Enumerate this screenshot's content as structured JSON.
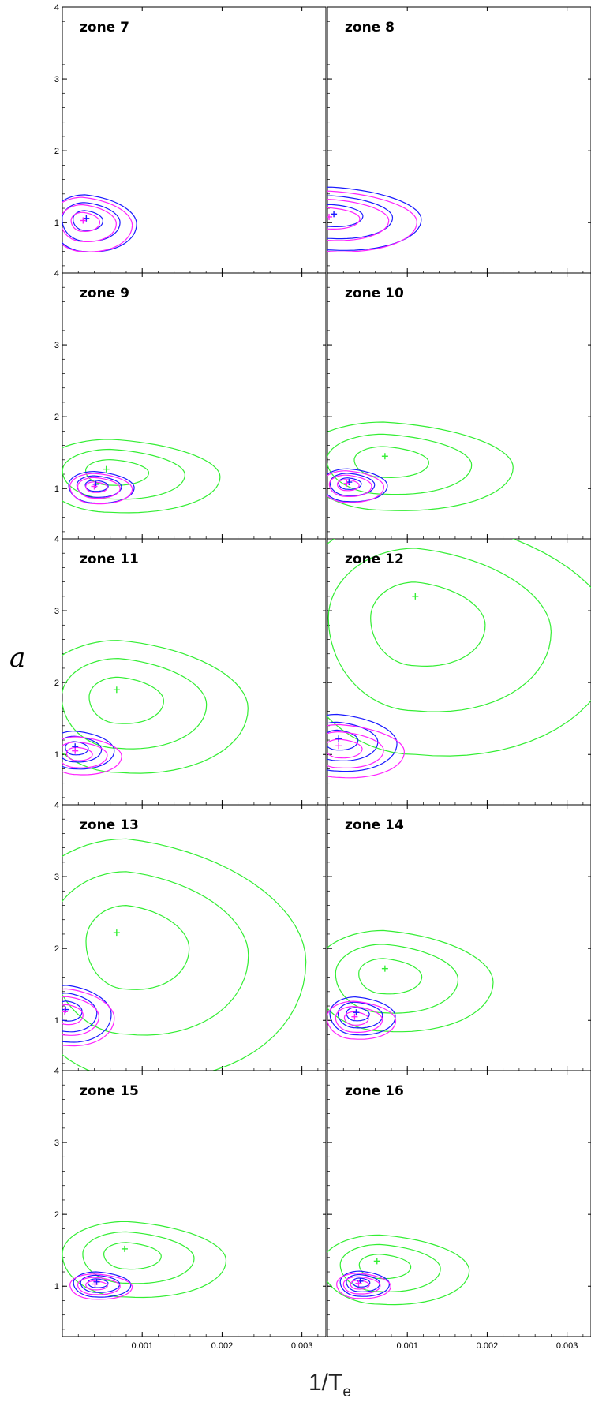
{
  "figure": {
    "ylabel": "a",
    "xlabel_main": "1/T",
    "xlabel_sub": "e"
  },
  "chart_data": {
    "type": "scatter",
    "description_kind": "contour panels, 2 columns x 5 rows",
    "xlim": [
      0.0,
      0.0033
    ],
    "ylim": [
      0.3,
      4
    ],
    "x_ticks": [
      0.001,
      0.002,
      0.003
    ],
    "x_tick_labels": [
      "0.001",
      "0.002",
      "0.003"
    ],
    "y_ticks": [
      1,
      2,
      3,
      4
    ],
    "y_tick_labels": [
      "1",
      "2",
      "3",
      "4"
    ],
    "colors": {
      "blue": "#1a1aff",
      "magenta": "#ff22ff",
      "green": "#33ee33"
    },
    "panels": [
      {
        "label": "zone 7",
        "contours": [
          {
            "color": "blue",
            "cx": 0.00028,
            "cy": 1.05,
            "rx": 0.00052,
            "ry": 0.45
          },
          {
            "color": "magenta",
            "cx": 0.00025,
            "cy": 1.03,
            "rx": 0.0005,
            "ry": 0.43
          }
        ],
        "markers": [
          {
            "color": "blue",
            "x": 0.0003,
            "y": 1.06
          },
          {
            "color": "magenta",
            "x": 0.00026,
            "y": 1.03
          }
        ]
      },
      {
        "label": "zone 8",
        "contours": [
          {
            "color": "blue",
            "cx": 5e-05,
            "cy": 1.12,
            "rx": 0.0009,
            "ry": 0.5
          },
          {
            "color": "magenta",
            "cx": 2e-05,
            "cy": 1.08,
            "rx": 0.00088,
            "ry": 0.48
          }
        ],
        "markers": [
          {
            "color": "blue",
            "x": 8e-05,
            "y": 1.12
          },
          {
            "color": "magenta",
            "x": 2e-05,
            "y": 1.08
          }
        ]
      },
      {
        "label": "zone 9",
        "contours": [
          {
            "color": "green",
            "cx": 0.0006,
            "cy": 1.25,
            "rx": 0.0011,
            "ry": 0.58
          },
          {
            "color": "blue",
            "cx": 0.0004,
            "cy": 1.05,
            "rx": 0.0004,
            "ry": 0.25
          },
          {
            "color": "magenta",
            "cx": 0.0004,
            "cy": 1.03,
            "rx": 0.00038,
            "ry": 0.24
          }
        ],
        "markers": [
          {
            "color": "green",
            "x": 0.00055,
            "y": 1.27
          },
          {
            "color": "blue",
            "x": 0.00042,
            "y": 1.06
          },
          {
            "color": "magenta",
            "x": 0.0004,
            "y": 1.03
          }
        ]
      },
      {
        "label": "zone 10",
        "contours": [
          {
            "color": "green",
            "cx": 0.0007,
            "cy": 1.4,
            "rx": 0.0013,
            "ry": 0.7
          },
          {
            "color": "blue",
            "cx": 0.00025,
            "cy": 1.08,
            "rx": 0.0004,
            "ry": 0.26
          },
          {
            "color": "magenta",
            "cx": 0.00023,
            "cy": 1.06,
            "rx": 0.00038,
            "ry": 0.25
          }
        ],
        "markers": [
          {
            "color": "green",
            "x": 0.00072,
            "y": 1.45
          },
          {
            "color": "blue",
            "x": 0.00027,
            "y": 1.09
          },
          {
            "color": "magenta",
            "x": 0.00024,
            "y": 1.07
          }
        ]
      },
      {
        "label": "zone 11",
        "contours": [
          {
            "color": "green",
            "cx": 0.0007,
            "cy": 1.8,
            "rx": 0.0013,
            "ry": 1.05
          },
          {
            "color": "blue",
            "cx": 0.00015,
            "cy": 1.1,
            "rx": 0.0004,
            "ry": 0.3
          },
          {
            "color": "magenta",
            "cx": 0.00018,
            "cy": 1.02,
            "rx": 0.00045,
            "ry": 0.3
          }
        ],
        "markers": [
          {
            "color": "green",
            "x": 0.00068,
            "y": 1.9
          },
          {
            "color": "blue",
            "x": 0.00016,
            "y": 1.11
          },
          {
            "color": "magenta",
            "x": 0.00016,
            "y": 1.05
          }
        ]
      },
      {
        "label": "zone 12",
        "contours": [
          {
            "color": "green",
            "cx": 0.0011,
            "cy": 2.9,
            "rx": 0.002,
            "ry": 1.9
          },
          {
            "color": "blue",
            "cx": 0.00012,
            "cy": 1.22,
            "rx": 0.0006,
            "ry": 0.45
          },
          {
            "color": "magenta",
            "cx": 0.00015,
            "cy": 1.1,
            "rx": 0.00065,
            "ry": 0.42
          }
        ],
        "markers": [
          {
            "color": "green",
            "x": 0.0011,
            "y": 3.2
          },
          {
            "color": "blue",
            "x": 0.00014,
            "y": 1.22
          },
          {
            "color": "magenta",
            "x": 0.00014,
            "y": 1.12
          }
        ]
      },
      {
        "label": "zone 13",
        "contours": [
          {
            "color": "green",
            "cx": 0.0008,
            "cy": 2.1,
            "rx": 0.0018,
            "ry": 1.9
          },
          {
            "color": "blue",
            "cx": 5e-05,
            "cy": 1.15,
            "rx": 0.00045,
            "ry": 0.45
          },
          {
            "color": "magenta",
            "cx": 5e-05,
            "cy": 1.1,
            "rx": 0.00048,
            "ry": 0.45
          }
        ],
        "markers": [
          {
            "color": "green",
            "x": 0.00068,
            "y": 2.22
          },
          {
            "color": "blue",
            "x": 4e-05,
            "y": 1.15
          },
          {
            "color": "magenta",
            "x": 3e-05,
            "y": 1.12
          }
        ]
      },
      {
        "label": "zone 14",
        "contours": [
          {
            "color": "green",
            "cx": 0.0007,
            "cy": 1.65,
            "rx": 0.0011,
            "ry": 0.8
          },
          {
            "color": "blue",
            "cx": 0.00035,
            "cy": 1.1,
            "rx": 0.0004,
            "ry": 0.3
          },
          {
            "color": "magenta",
            "cx": 0.00033,
            "cy": 1.04,
            "rx": 0.00042,
            "ry": 0.3
          }
        ],
        "markers": [
          {
            "color": "green",
            "x": 0.00072,
            "y": 1.72
          },
          {
            "color": "blue",
            "x": 0.00036,
            "y": 1.11
          },
          {
            "color": "magenta",
            "x": 0.00034,
            "y": 1.05
          }
        ]
      },
      {
        "label": "zone 15",
        "contours": [
          {
            "color": "green",
            "cx": 0.0008,
            "cy": 1.45,
            "rx": 0.001,
            "ry": 0.6
          },
          {
            "color": "blue",
            "cx": 0.00042,
            "cy": 1.05,
            "rx": 0.00035,
            "ry": 0.2
          },
          {
            "color": "magenta",
            "cx": 0.0004,
            "cy": 1.02,
            "rx": 0.00038,
            "ry": 0.2
          }
        ],
        "markers": [
          {
            "color": "green",
            "x": 0.00078,
            "y": 1.52
          },
          {
            "color": "blue",
            "x": 0.00043,
            "y": 1.06
          },
          {
            "color": "magenta",
            "x": 0.00041,
            "y": 1.03
          }
        ]
      },
      {
        "label": "zone 16",
        "contours": [
          {
            "color": "green",
            "cx": 0.00065,
            "cy": 1.3,
            "rx": 0.0009,
            "ry": 0.55
          },
          {
            "color": "blue",
            "cx": 0.0004,
            "cy": 1.06,
            "rx": 0.0003,
            "ry": 0.2
          },
          {
            "color": "magenta",
            "cx": 0.00038,
            "cy": 1.03,
            "rx": 0.00033,
            "ry": 0.2
          }
        ],
        "markers": [
          {
            "color": "green",
            "x": 0.00062,
            "y": 1.35
          },
          {
            "color": "blue",
            "x": 0.00041,
            "y": 1.07
          },
          {
            "color": "magenta",
            "x": 0.00039,
            "y": 1.04
          }
        ]
      }
    ]
  }
}
